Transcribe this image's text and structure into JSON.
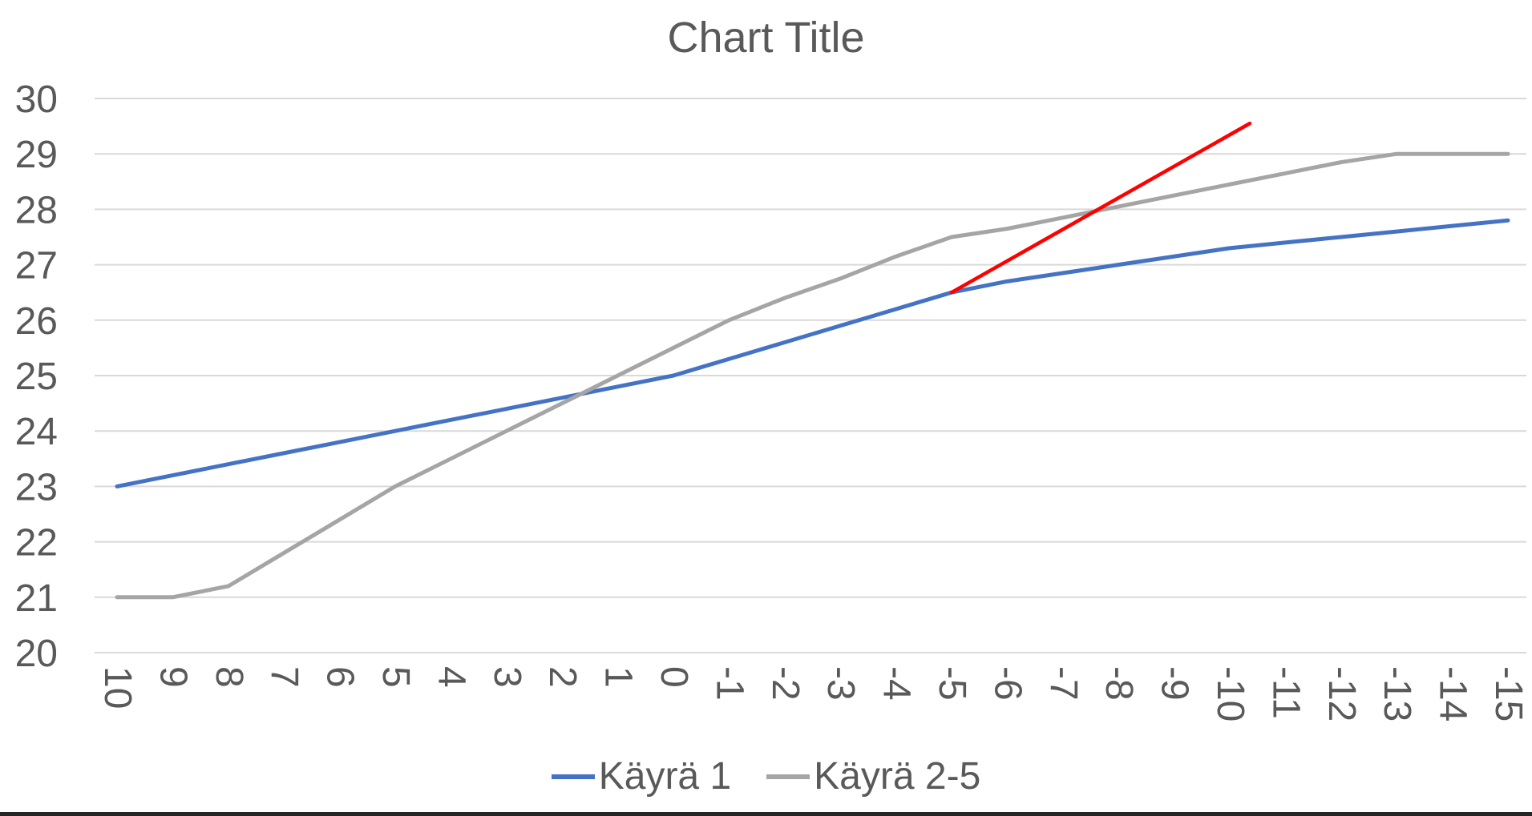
{
  "window": {
    "bottom_border_color": "#262626"
  },
  "chart_data": {
    "type": "line",
    "title": "Chart Title",
    "categories": [
      "10",
      "9",
      "8",
      "7",
      "6",
      "5",
      "4",
      "3",
      "2",
      "1",
      "0",
      "-1",
      "-2",
      "-3",
      "-4",
      "-5",
      "-6",
      "-7",
      "-8",
      "-9",
      "-10",
      "-11",
      "-12",
      "-13",
      "-14",
      "-15"
    ],
    "xlabel": "",
    "ylabel": "",
    "ylim": [
      20,
      30
    ],
    "y_tick_step": 1,
    "grid": "horizontal",
    "legend_position": "bottom",
    "axis_text_color": "#595959",
    "gridline_color": "#D9D9D9",
    "series": [
      {
        "name": "Käyrä 1",
        "color": "#4472C4",
        "values": [
          23.0,
          23.2,
          23.4,
          23.6,
          23.8,
          24.0,
          24.2,
          24.4,
          24.6,
          24.8,
          25.0,
          25.3,
          25.6,
          25.9,
          26.2,
          26.5,
          26.7,
          26.85,
          27.0,
          27.15,
          27.3,
          27.4,
          27.5,
          27.6,
          27.7,
          27.8
        ]
      },
      {
        "name": "Käyrä 2-5",
        "color": "#A5A5A5",
        "values": [
          21.0,
          21.0,
          21.2,
          21.8,
          22.4,
          23.0,
          23.5,
          24.0,
          24.5,
          25.0,
          25.5,
          26.0,
          26.4,
          26.75,
          27.15,
          27.5,
          27.65,
          27.85,
          28.05,
          28.25,
          28.45,
          28.65,
          28.85,
          29.0,
          29.0,
          29.0
        ]
      }
    ],
    "annotations": [
      {
        "name": "red-trend-line",
        "type": "line-segment",
        "color": "#FF0000",
        "x_index_start": 15,
        "y_start": 26.5,
        "x_index_end": 20.36,
        "y_end": 29.55
      }
    ]
  }
}
